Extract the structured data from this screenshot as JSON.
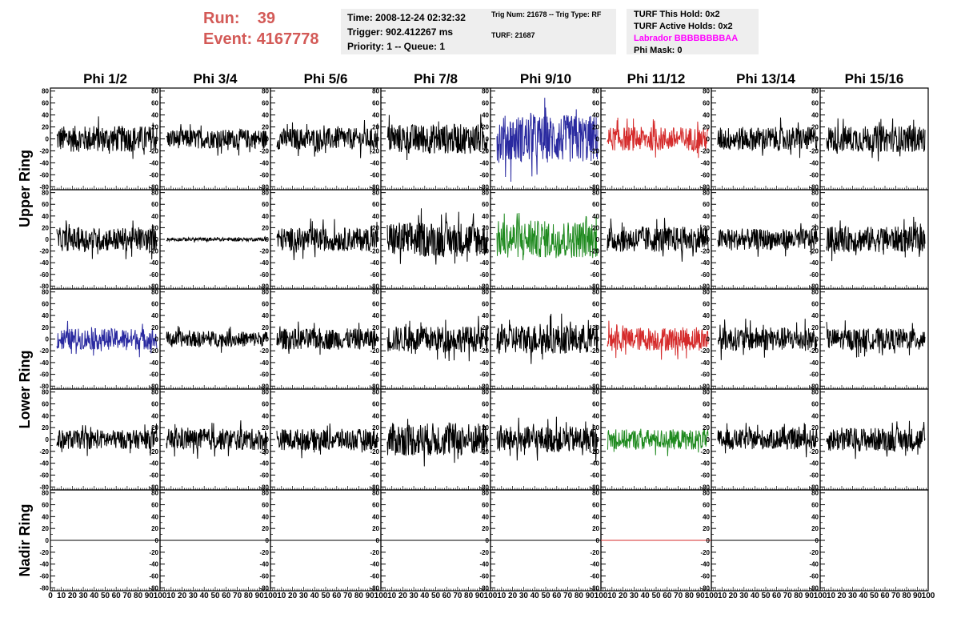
{
  "run_info": {
    "run_label": "Run:",
    "run_value": "39",
    "event_label": "Event:",
    "event_value": "4167778"
  },
  "time_box": {
    "time": "Time: 2008-12-24 02:32:32",
    "trigger": "Trigger: 902.412267 ms",
    "priority": "Priority: 1 -- Queue: 1"
  },
  "trig_box": {
    "trig": "Trig Num: 21678 -- Trig Type: RF",
    "turf": "TURF: 21687"
  },
  "turf_box": {
    "this_hold": "TURF This Hold: 0x2",
    "active_holds": "TURF Active Holds: 0x2",
    "labrador": "Labrador BBBBBBBBAA",
    "phi_mask": "Phi Mask: 0"
  },
  "phi_headers": [
    "Phi 1/2",
    "Phi 3/4",
    "Phi 5/6",
    "Phi 7/8",
    "Phi 9/10",
    "Phi 11/12",
    "Phi 13/14",
    "Phi 15/16"
  ],
  "ring_labels": [
    "Upper Ring",
    "Lower Ring",
    "Nadir Ring"
  ],
  "y_ticks": [
    "80",
    "60",
    "40",
    "20",
    "0",
    "-20",
    "-40",
    "-60",
    "-80"
  ],
  "x_ticks": [
    "0",
    "10",
    "20",
    "30",
    "40",
    "50",
    "60",
    "70",
    "80",
    "90",
    "100"
  ],
  "colors": {
    "run_text": "#d35a57",
    "box_bg": "#eeeeee",
    "labrador": "#ff00ff",
    "trace_black": "#000000",
    "trace_blue": "#2a2aa0",
    "trace_red": "#d52b2b",
    "trace_green": "#1f8a1f"
  },
  "chart_data": {
    "type": "line",
    "rows": 5,
    "columns": 8,
    "ylim": [
      -85,
      85
    ],
    "xlim": [
      0,
      100
    ],
    "trace_colors": [
      [
        "black",
        "black",
        "black",
        "black",
        "blue",
        "red",
        "black",
        "black"
      ],
      [
        "black",
        "black",
        "black",
        "black",
        "green",
        "black",
        "black",
        "black"
      ],
      [
        "blue",
        "black",
        "black",
        "black",
        "black",
        "red",
        "black",
        "black"
      ],
      [
        "black",
        "black",
        "black",
        "black",
        "black",
        "green",
        "black",
        "black"
      ],
      [
        "black",
        "black",
        "black",
        "black",
        "black",
        "red",
        "black",
        "none"
      ]
    ],
    "amplitudes": [
      [
        22,
        16,
        18,
        25,
        40,
        20,
        20,
        22
      ],
      [
        20,
        3,
        20,
        30,
        32,
        22,
        18,
        22
      ],
      [
        18,
        13,
        18,
        22,
        25,
        20,
        20,
        18
      ],
      [
        16,
        18,
        18,
        28,
        22,
        17,
        17,
        20
      ],
      [
        0,
        0,
        0,
        0,
        0,
        0,
        0,
        0
      ]
    ]
  }
}
